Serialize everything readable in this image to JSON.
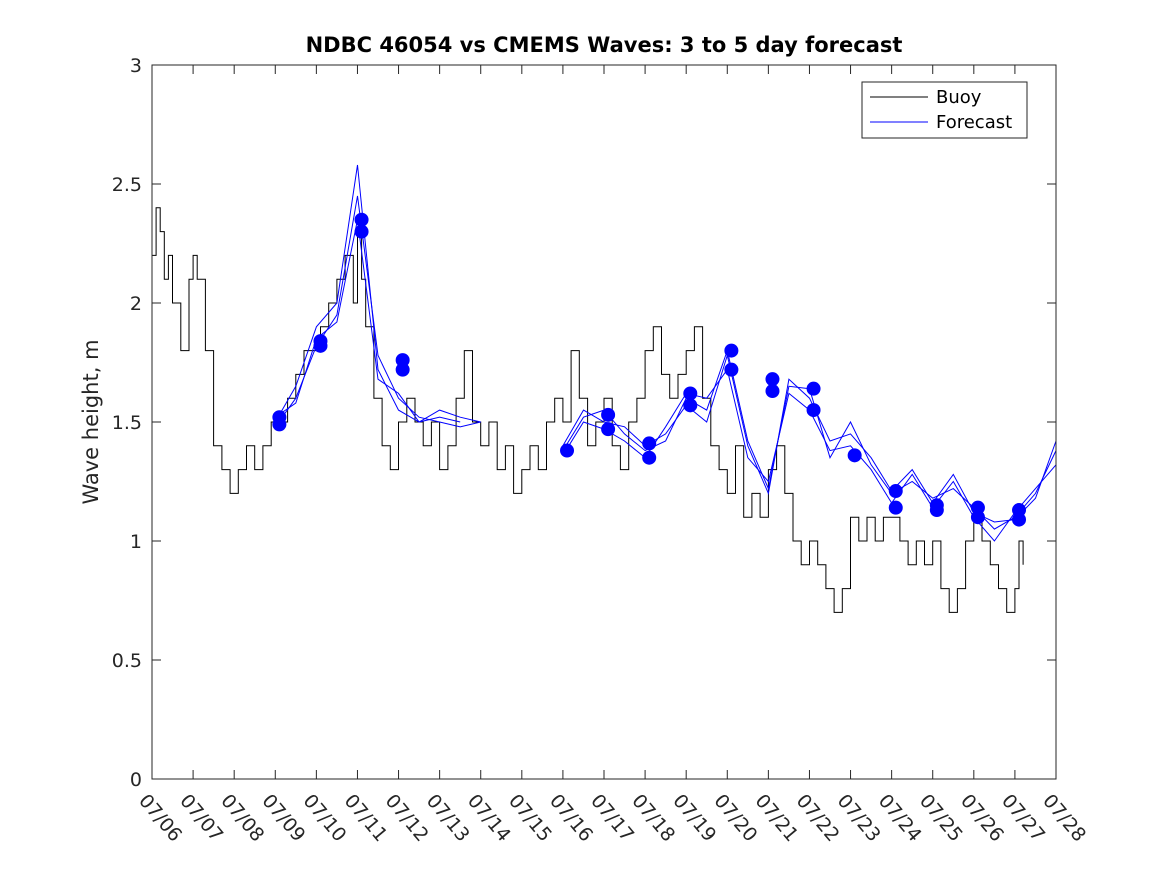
{
  "chart_data": {
    "type": "line",
    "title": "NDBC 46054 vs CMEMS Waves: 3 to 5 day forecast",
    "xlabel": "",
    "ylabel": "Wave height, m",
    "xlim": [
      0,
      22
    ],
    "ylim": [
      0,
      3
    ],
    "y_ticks": [
      0,
      0.5,
      1,
      1.5,
      2,
      2.5,
      3
    ],
    "y_tick_labels": [
      "0",
      "0.5",
      "1",
      "1.5",
      "2",
      "2.5",
      "3"
    ],
    "x_ticks": [
      0,
      1,
      2,
      3,
      4,
      5,
      6,
      7,
      8,
      9,
      10,
      11,
      12,
      13,
      14,
      15,
      16,
      17,
      18,
      19,
      20,
      21,
      22
    ],
    "x_tick_labels": [
      "07/06",
      "07/07",
      "07/08",
      "07/09",
      "07/10",
      "07/11",
      "07/12",
      "07/13",
      "07/14",
      "07/15",
      "07/16",
      "07/17",
      "07/18",
      "07/19",
      "07/20",
      "07/21",
      "07/22",
      "07/23",
      "07/24",
      "07/25",
      "07/26",
      "07/27",
      "07/28"
    ],
    "legend": {
      "position": "top-right",
      "entries": [
        "Buoy",
        "Forecast"
      ]
    },
    "colors": {
      "buoy": "#000000",
      "forecast": "#0000ff"
    },
    "series": [
      {
        "name": "Buoy",
        "x": [
          0,
          0.1,
          0.2,
          0.3,
          0.4,
          0.5,
          0.7,
          0.9,
          1.0,
          1.1,
          1.3,
          1.5,
          1.7,
          1.9,
          2.1,
          2.3,
          2.5,
          2.7,
          2.9,
          3.1,
          3.3,
          3.5,
          3.7,
          3.9,
          4.1,
          4.3,
          4.5,
          4.7,
          4.9,
          5.0,
          5.1,
          5.2,
          5.4,
          5.6,
          5.8,
          6.0,
          6.2,
          6.4,
          6.6,
          6.8,
          7.0,
          7.2,
          7.4,
          7.6,
          7.8,
          8.0,
          8.2,
          8.4,
          8.6,
          8.8,
          9.0,
          9.2,
          9.4,
          9.6,
          9.8,
          10.0,
          10.2,
          10.4,
          10.6,
          10.8,
          11.0,
          11.2,
          11.4,
          11.6,
          11.8,
          12.0,
          12.2,
          12.4,
          12.6,
          12.8,
          13.0,
          13.2,
          13.4,
          13.6,
          13.8,
          14.0,
          14.2,
          14.4,
          14.6,
          14.8,
          15.0,
          15.2,
          15.4,
          15.6,
          15.8,
          16.0,
          16.2,
          16.4,
          16.6,
          16.8,
          17.0,
          17.2,
          17.4,
          17.6,
          17.8,
          18.0,
          18.2,
          18.4,
          18.6,
          18.8,
          19.0,
          19.2,
          19.4,
          19.6,
          19.8,
          20.0,
          20.2,
          20.4,
          20.6,
          20.8,
          21.0,
          21.1,
          21.2
        ],
        "values": [
          2.2,
          2.4,
          2.3,
          2.1,
          2.2,
          2.0,
          1.8,
          2.1,
          2.2,
          2.1,
          1.8,
          1.4,
          1.3,
          1.2,
          1.3,
          1.4,
          1.3,
          1.4,
          1.5,
          1.5,
          1.6,
          1.7,
          1.8,
          1.8,
          1.9,
          2.0,
          2.1,
          2.2,
          2.0,
          2.3,
          2.1,
          1.9,
          1.6,
          1.4,
          1.3,
          1.5,
          1.6,
          1.5,
          1.4,
          1.5,
          1.3,
          1.4,
          1.6,
          1.8,
          1.5,
          1.4,
          1.5,
          1.3,
          1.4,
          1.2,
          1.3,
          1.4,
          1.3,
          1.5,
          1.6,
          1.5,
          1.8,
          1.6,
          1.4,
          1.5,
          1.6,
          1.4,
          1.3,
          1.5,
          1.6,
          1.8,
          1.9,
          1.7,
          1.6,
          1.7,
          1.8,
          1.9,
          1.6,
          1.4,
          1.3,
          1.2,
          1.4,
          1.1,
          1.2,
          1.1,
          1.3,
          1.4,
          1.2,
          1.0,
          0.9,
          1.0,
          0.9,
          0.8,
          0.7,
          0.8,
          1.1,
          1.0,
          1.1,
          1.0,
          1.1,
          1.1,
          1.0,
          0.9,
          1.0,
          0.9,
          1.0,
          0.8,
          0.7,
          0.8,
          1.0,
          1.1,
          1.0,
          0.9,
          0.8,
          0.7,
          0.8,
          1.0,
          0.9
        ]
      },
      {
        "name": "Forecast",
        "x": [
          3.0,
          3.5,
          4.0,
          4.5,
          5.0,
          5.5,
          6.0,
          6.5,
          7.0,
          7.5,
          8.0
        ],
        "values": [
          1.48,
          1.6,
          1.82,
          1.95,
          2.45,
          1.78,
          1.6,
          1.52,
          1.5,
          1.48,
          1.5
        ]
      },
      {
        "name": "Forecast",
        "x": [
          3.0,
          3.5,
          4.0,
          4.5,
          5.0,
          5.5,
          6.0,
          6.5,
          7.0,
          7.5,
          8.0
        ],
        "values": [
          1.5,
          1.65,
          1.9,
          2.0,
          2.58,
          1.72,
          1.55,
          1.5,
          1.55,
          1.52,
          1.5
        ]
      },
      {
        "name": "Forecast",
        "x": [
          3.0,
          3.5,
          4.0,
          4.5,
          5.0,
          5.5,
          6.0,
          6.5,
          7.0,
          7.5
        ],
        "values": [
          1.52,
          1.58,
          1.85,
          1.92,
          2.35,
          1.68,
          1.62,
          1.5,
          1.52,
          1.5
        ]
      },
      {
        "name": "Forecast",
        "x": [
          10.0,
          10.5,
          11.0,
          11.5,
          12.0,
          12.5,
          13.0,
          13.5,
          14.0,
          14.5,
          15.0,
          15.5,
          16.0,
          16.5,
          17.0,
          17.5,
          18.0,
          18.5,
          19.0,
          19.5,
          20.0,
          20.5,
          21.0,
          21.5,
          22.0
        ],
        "values": [
          1.38,
          1.52,
          1.55,
          1.45,
          1.38,
          1.42,
          1.6,
          1.55,
          1.8,
          1.42,
          1.22,
          1.65,
          1.64,
          1.35,
          1.5,
          1.32,
          1.2,
          1.25,
          1.18,
          1.22,
          1.14,
          1.05,
          1.1,
          1.2,
          1.38
        ]
      },
      {
        "name": "Forecast",
        "x": [
          10.0,
          10.5,
          11.0,
          11.5,
          12.0,
          12.5,
          13.0,
          13.5,
          14.0,
          14.5,
          15.0,
          15.5,
          16.0,
          16.5,
          17.0,
          17.5,
          18.0,
          18.5,
          19.0,
          19.5,
          20.0,
          20.5,
          21.0,
          21.5,
          22.0
        ],
        "values": [
          1.36,
          1.5,
          1.47,
          1.42,
          1.35,
          1.48,
          1.62,
          1.6,
          1.72,
          1.35,
          1.25,
          1.62,
          1.55,
          1.38,
          1.4,
          1.3,
          1.16,
          1.28,
          1.14,
          1.25,
          1.1,
          1.0,
          1.12,
          1.22,
          1.32
        ]
      },
      {
        "name": "Forecast",
        "x": [
          10.0,
          10.5,
          11.0,
          11.5,
          12.0,
          12.5,
          13.0,
          13.5,
          14.0,
          14.5,
          15.0,
          15.5,
          16.0,
          16.5,
          17.0,
          17.5,
          18.0,
          18.5,
          19.0,
          19.5,
          20.0,
          20.5,
          21.0,
          21.5,
          22.0
        ],
        "values": [
          1.4,
          1.55,
          1.5,
          1.48,
          1.4,
          1.45,
          1.57,
          1.5,
          1.78,
          1.4,
          1.2,
          1.68,
          1.6,
          1.42,
          1.45,
          1.35,
          1.21,
          1.3,
          1.16,
          1.28,
          1.12,
          1.08,
          1.09,
          1.18,
          1.42
        ]
      }
    ],
    "markers": {
      "name": "Forecast",
      "x": [
        3.1,
        3.1,
        4.1,
        4.1,
        5.1,
        5.1,
        6.1,
        6.1,
        10.1,
        11.1,
        11.1,
        12.1,
        12.1,
        13.1,
        13.1,
        14.1,
        14.1,
        15.1,
        15.1,
        16.1,
        16.1,
        17.1,
        18.1,
        18.1,
        19.1,
        19.1,
        20.1,
        20.1,
        21.1,
        21.1
      ],
      "values": [
        1.49,
        1.52,
        1.82,
        1.84,
        2.3,
        2.35,
        1.72,
        1.76,
        1.38,
        1.47,
        1.53,
        1.35,
        1.41,
        1.57,
        1.62,
        1.72,
        1.8,
        1.63,
        1.68,
        1.55,
        1.64,
        1.36,
        1.14,
        1.21,
        1.13,
        1.15,
        1.1,
        1.14,
        1.09,
        1.13
      ]
    }
  }
}
